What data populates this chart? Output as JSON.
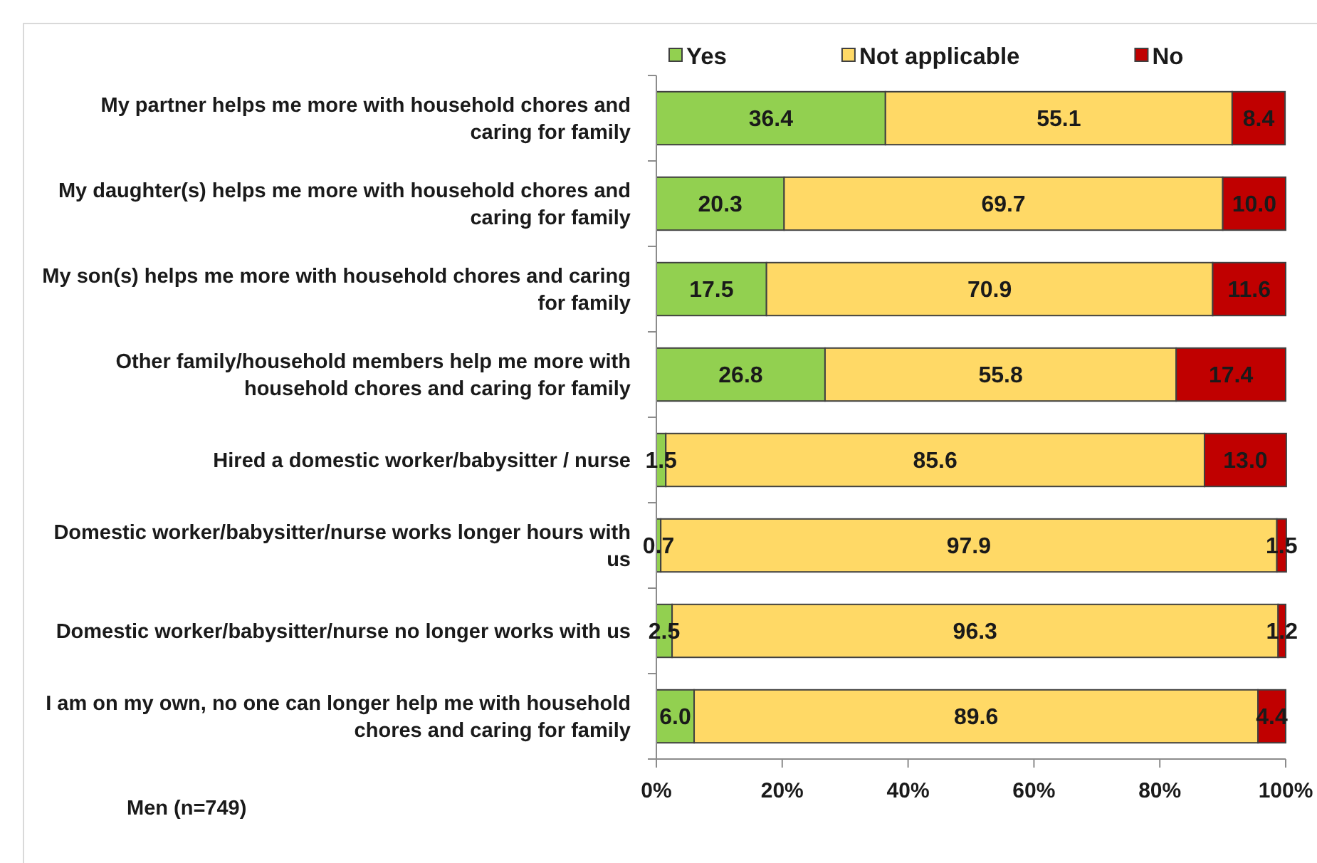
{
  "chart_data": {
    "type": "bar",
    "orientation": "horizontal",
    "stacked": true,
    "categories": [
      "My partner helps me more with household chores and caring for family",
      "My daughter(s) helps me more with household chores and caring for family",
      "My son(s) helps me more with household chores and caring for family",
      "Other family/household members help me more with household chores and caring for family",
      "Hired a domestic worker/babysitter / nurse",
      "Domestic worker/babysitter/nurse works longer hours with us",
      "Domestic worker/babysitter/nurse no longer works with us",
      "I am on my own, no one can longer help me with household chores and caring for family"
    ],
    "series": [
      {
        "name": "Yes",
        "color": "#92d050",
        "values": [
          36.4,
          20.3,
          17.5,
          26.8,
          1.5,
          0.7,
          2.5,
          6.0
        ],
        "value_labels": [
          "36.4",
          "20.3",
          "17.5",
          "26.8",
          "1.5",
          "0.7",
          "2.5",
          "6.0"
        ]
      },
      {
        "name": "Not applicable",
        "color": "#ffd966",
        "values": [
          55.1,
          69.7,
          70.9,
          55.8,
          85.6,
          97.9,
          96.3,
          89.6
        ],
        "value_labels": [
          "55.1",
          "69.7",
          "70.9",
          "55.8",
          "85.6",
          "97.9",
          "96.3",
          "89.6"
        ]
      },
      {
        "name": "No",
        "color": "#c00000",
        "values": [
          8.4,
          10.0,
          11.6,
          17.4,
          13.0,
          1.5,
          1.2,
          4.4
        ],
        "value_labels": [
          "8.4",
          "10.0",
          "11.6",
          "17.4",
          "13.0",
          "1.5",
          "1.2",
          "4.4"
        ]
      }
    ],
    "xlim": [
      0,
      100
    ],
    "xticks": [
      {
        "value": 0,
        "label": "0%"
      },
      {
        "value": 20,
        "label": "20%"
      },
      {
        "value": 40,
        "label": "40%"
      },
      {
        "value": 60,
        "label": "60%"
      },
      {
        "value": 80,
        "label": "80%"
      },
      {
        "value": 100,
        "label": "100%"
      }
    ],
    "legend": "top",
    "annotations": [
      "Men (n=749)"
    ]
  }
}
